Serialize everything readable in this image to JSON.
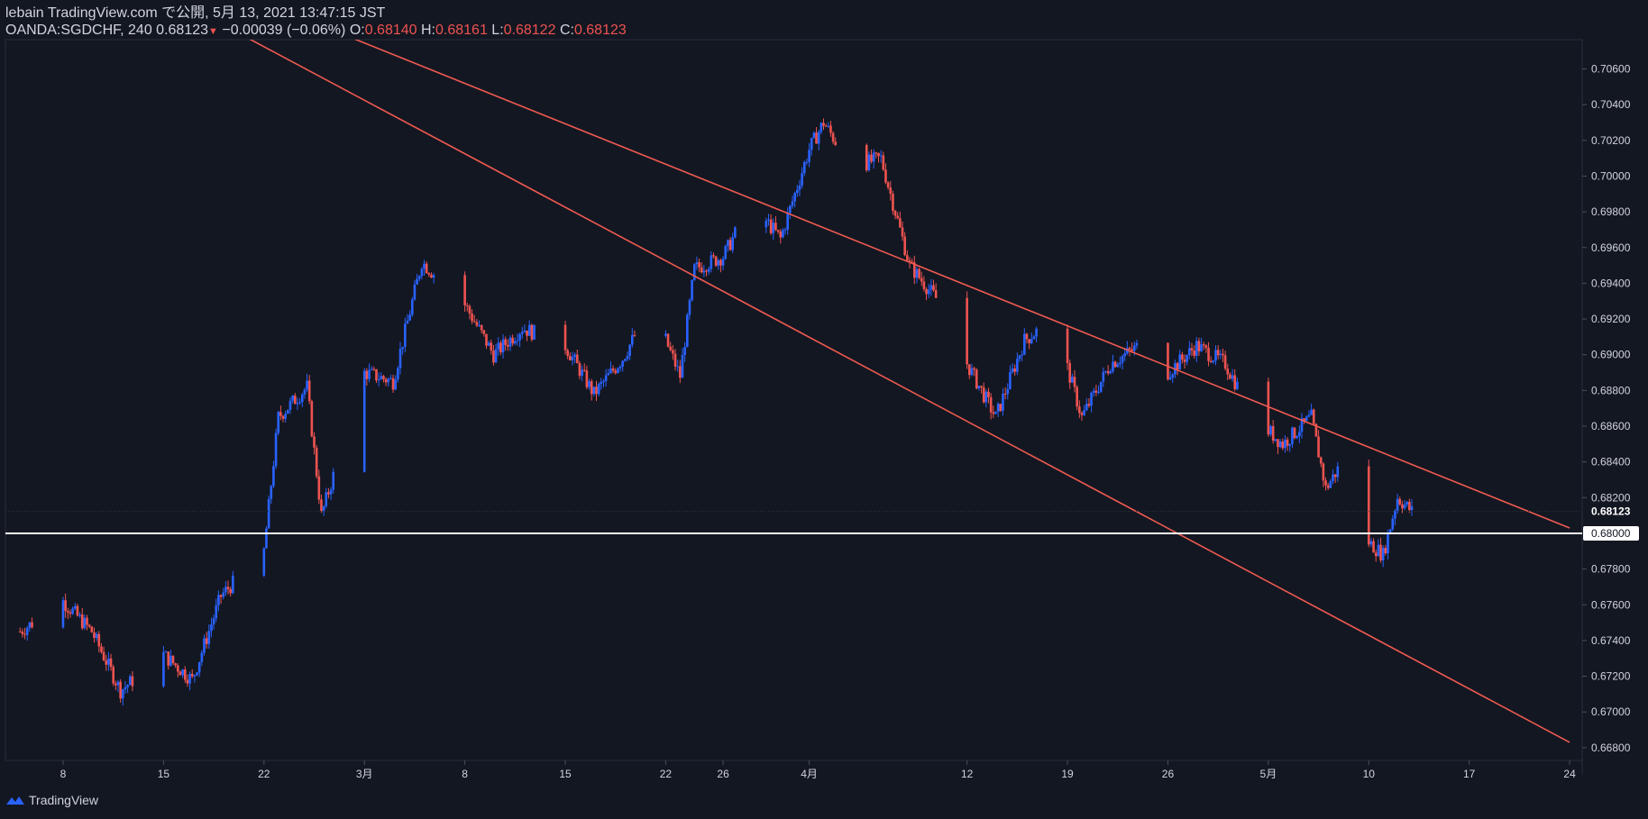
{
  "header": {
    "line1": "lebain TradingView.com で公開, 5月 13, 2021 13:47:15 JST",
    "symbol": "OANDA:SGDCHF, 240",
    "last": "0.68123",
    "change": "−0.00039 (−0.06%)",
    "o_label": "O:",
    "o": "0.68140",
    "h_label": "H:",
    "h": "0.68161",
    "l_label": "L:",
    "l": "0.68122",
    "c_label": "C:",
    "c": "0.68123",
    "down_arrow": "▼"
  },
  "footer": {
    "brand": "TradingView",
    "icon": "tradingview-logo-icon"
  },
  "colors": {
    "background": "#131722",
    "up": "#2962ff",
    "down": "#ef5350",
    "channel": "#f05a50",
    "support": "#ffffff",
    "axis_text": "#d1d4dc"
  },
  "chart_data": {
    "type": "candlestick",
    "symbol": "OANDA:SGDCHF",
    "interval": "240",
    "ylim": [
      0.667,
      0.707
    ],
    "y_ticks": [
      "0.70600",
      "0.70400",
      "0.70200",
      "0.70000",
      "0.69800",
      "0.69600",
      "0.69400",
      "0.69200",
      "0.69000",
      "0.68800",
      "0.68600",
      "0.68400",
      "0.68200",
      "0.67800",
      "0.67600",
      "0.67400",
      "0.67200",
      "0.67000",
      "0.66800"
    ],
    "x_labels": [
      "8",
      "15",
      "22",
      "3月",
      "8",
      "15",
      "22",
      "26",
      "4月",
      "12",
      "19",
      "26",
      "5月",
      "10",
      "17",
      "24"
    ],
    "current_price_label": "0.68123",
    "support_label": "0.68000",
    "support_level": 0.68,
    "path_points": [
      {
        "x": "2021-02-05",
        "y": 0.6745
      },
      {
        "x": "2021-02-08",
        "y": 0.6762
      },
      {
        "x": "2021-02-10",
        "y": 0.6745
      },
      {
        "x": "2021-02-12",
        "y": 0.6712
      },
      {
        "x": "2021-02-15",
        "y": 0.6732
      },
      {
        "x": "2021-02-17",
        "y": 0.6718
      },
      {
        "x": "2021-02-19",
        "y": 0.6765
      },
      {
        "x": "2021-02-22",
        "y": 0.679
      },
      {
        "x": "2021-02-23",
        "y": 0.6865
      },
      {
        "x": "2021-02-25",
        "y": 0.6882
      },
      {
        "x": "2021-02-26",
        "y": 0.681
      },
      {
        "x": "2021-03-01",
        "y": 0.689
      },
      {
        "x": "2021-03-03",
        "y": 0.6885
      },
      {
        "x": "2021-03-05",
        "y": 0.6952
      },
      {
        "x": "2021-03-08",
        "y": 0.6928
      },
      {
        "x": "2021-03-10",
        "y": 0.69
      },
      {
        "x": "2021-03-12",
        "y": 0.6915
      },
      {
        "x": "2021-03-15",
        "y": 0.6905
      },
      {
        "x": "2021-03-17",
        "y": 0.6878
      },
      {
        "x": "2021-03-19",
        "y": 0.6898
      },
      {
        "x": "2021-03-21",
        "y": 0.6928
      },
      {
        "x": "2021-03-23",
        "y": 0.6888
      },
      {
        "x": "2021-03-24",
        "y": 0.6948
      },
      {
        "x": "2021-03-26",
        "y": 0.6955
      },
      {
        "x": "2021-03-28",
        "y": 0.6985
      },
      {
        "x": "2021-03-30",
        "y": 0.6965
      },
      {
        "x": "2021-04-01",
        "y": 0.7015
      },
      {
        "x": "2021-04-02",
        "y": 0.703
      },
      {
        "x": "2021-04-04",
        "y": 0.7005
      },
      {
        "x": "2021-04-06",
        "y": 0.701
      },
      {
        "x": "2021-04-07",
        "y": 0.698
      },
      {
        "x": "2021-04-08",
        "y": 0.695
      },
      {
        "x": "2021-04-10",
        "y": 0.693
      },
      {
        "x": "2021-04-12",
        "y": 0.6895
      },
      {
        "x": "2021-04-14",
        "y": 0.6865
      },
      {
        "x": "2021-04-16",
        "y": 0.6908
      },
      {
        "x": "2021-04-18",
        "y": 0.692
      },
      {
        "x": "2021-04-20",
        "y": 0.6865
      },
      {
        "x": "2021-04-22",
        "y": 0.6895
      },
      {
        "x": "2021-04-24",
        "y": 0.6905
      },
      {
        "x": "2021-04-26",
        "y": 0.689
      },
      {
        "x": "2021-04-28",
        "y": 0.6905
      },
      {
        "x": "2021-04-30",
        "y": 0.6895
      },
      {
        "x": "2021-05-02",
        "y": 0.6865
      },
      {
        "x": "2021-05-04",
        "y": 0.685
      },
      {
        "x": "2021-05-06",
        "y": 0.6865
      },
      {
        "x": "2021-05-07",
        "y": 0.6825
      },
      {
        "x": "2021-05-08",
        "y": 0.6838
      },
      {
        "x": "2021-05-09",
        "y": 0.6808
      },
      {
        "x": "2021-05-10",
        "y": 0.6795
      },
      {
        "x": "2021-05-11",
        "y": 0.6788
      },
      {
        "x": "2021-05-12",
        "y": 0.682
      },
      {
        "x": "2021-05-13",
        "y": 0.68123
      }
    ],
    "channel_upper": [
      {
        "x": "2021-02-27",
        "y": 0.7081
      },
      {
        "x": "2021-05-24",
        "y": 0.6803
      }
    ],
    "channel_lower": [
      {
        "x": "2021-02-20",
        "y": 0.7081
      },
      {
        "x": "2021-05-24",
        "y": 0.6683
      }
    ]
  }
}
